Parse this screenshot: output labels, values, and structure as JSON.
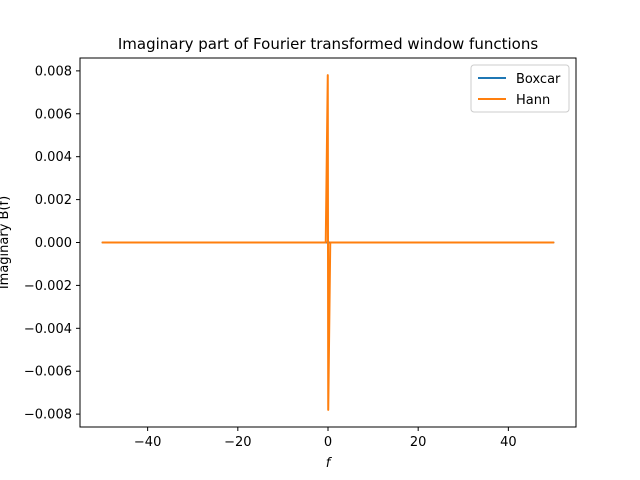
{
  "chart_data": {
    "type": "line",
    "title": "Imaginary part of Fourier transformed window functions",
    "xlabel": "f",
    "ylabel": "Imaginary B(f)",
    "xlim": [
      -55,
      55
    ],
    "ylim": [
      -0.0086,
      0.0086
    ],
    "xticks": [
      -40,
      -20,
      0,
      20,
      40
    ],
    "xtick_labels": [
      "−40",
      "−20",
      "0",
      "20",
      "40"
    ],
    "yticks": [
      -0.008,
      -0.006,
      -0.004,
      -0.002,
      0.0,
      0.002,
      0.004,
      0.006,
      0.008
    ],
    "ytick_labels": [
      "−0.008",
      "−0.006",
      "−0.004",
      "−0.002",
      "0.000",
      "0.002",
      "0.004",
      "0.006",
      "0.008"
    ],
    "grid": false,
    "legend_position": "top-right",
    "series": [
      {
        "name": "Boxcar",
        "color": "#1f77b4",
        "x": [
          -50,
          -0.5,
          0,
          0.5,
          50
        ],
        "y": [
          0,
          0,
          0,
          0,
          0
        ]
      },
      {
        "name": "Hann",
        "color": "#ff7f0e",
        "x": [
          -50,
          -0.5,
          -0.05,
          0,
          0.05,
          0.5,
          50
        ],
        "y": [
          0,
          0,
          0.0078,
          0,
          -0.0078,
          0,
          0
        ]
      }
    ]
  }
}
